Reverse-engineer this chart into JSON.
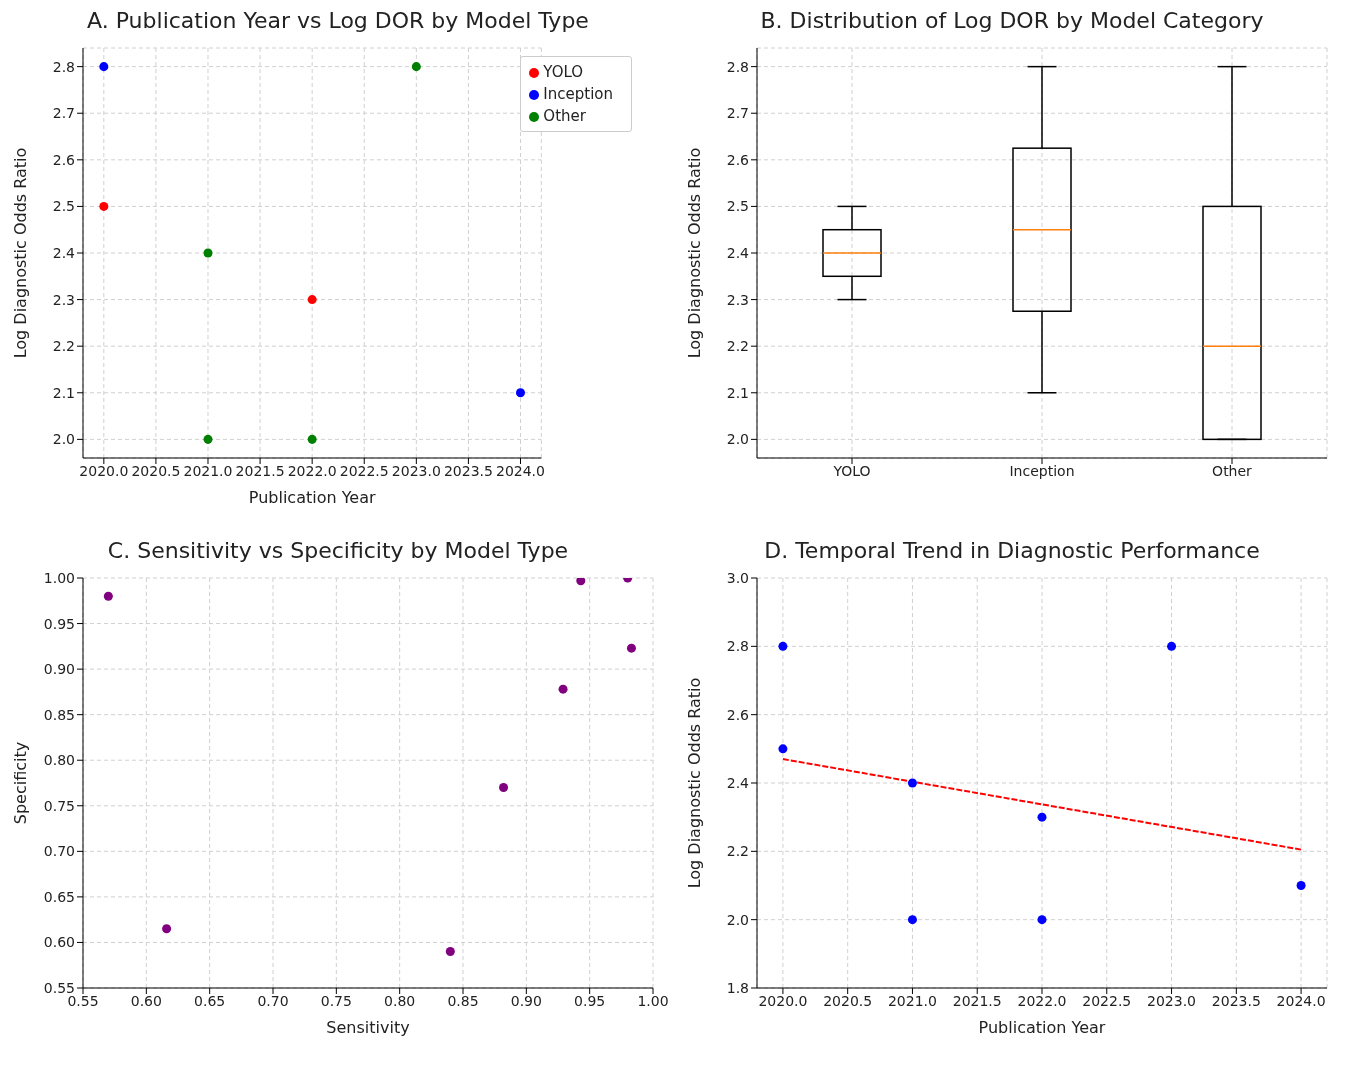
{
  "chart_data": [
    {
      "type": "scatter",
      "title": "A. Publication Year vs Log DOR by Model Type",
      "xlabel": "Publication Year",
      "ylabel": "Log Diagnostic Odds Ratio",
      "xlim": [
        2019.8,
        2024.2
      ],
      "xticks": [
        {
          "value": 2020,
          "label": "2020.0"
        },
        {
          "value": 2020.5,
          "label": "2020.5"
        },
        {
          "value": 2021,
          "label": "2021.0"
        },
        {
          "value": 2021.5,
          "label": "2021.5"
        },
        {
          "value": 2022,
          "label": "2022.0"
        },
        {
          "value": 2022.5,
          "label": "2022.5"
        },
        {
          "value": 2023,
          "label": "2023.0"
        },
        {
          "value": 2023.5,
          "label": "2023.5"
        },
        {
          "value": 2024,
          "label": "2024.0"
        }
      ],
      "ylim": [
        1.96,
        2.84
      ],
      "yticks": [
        {
          "value": 2,
          "label": "2.0"
        },
        2.1,
        2.2,
        2.3,
        2.4,
        2.5,
        2.6,
        2.7,
        2.8
      ],
      "grid": true,
      "legend": "top right",
      "marker": "circle",
      "series": [
        {
          "name": "YOLO",
          "color": "#ff0000",
          "x": [
            2020,
            2022
          ],
          "values": [
            2.5,
            2.3
          ]
        },
        {
          "name": "Inception",
          "color": "#0000ff",
          "x": [
            2020,
            2024
          ],
          "values": [
            2.8,
            2.1
          ]
        },
        {
          "name": "Other",
          "color": "#008000",
          "x": [
            2021,
            2021,
            2022,
            2023
          ],
          "values": [
            2.4,
            2.0,
            2.0,
            2.8
          ]
        }
      ]
    },
    {
      "type": "box",
      "title": "B. Distribution of Log DOR by Model Category",
      "ylabel": "Log Diagnostic Odds Ratio",
      "categories": [
        "YOLO",
        "Inception",
        "Other"
      ],
      "ylim": [
        1.96,
        2.84
      ],
      "yticks": [
        {
          "value": 2,
          "label": "2.0"
        },
        2.1,
        2.2,
        2.3,
        2.4,
        2.5,
        2.6,
        2.7,
        2.8
      ],
      "grid": true,
      "series": [
        {
          "color": "#000000",
          "boxes": [
            {
              "low": 2.3,
              "q1": 2.35,
              "median": 2.4,
              "q3": 2.45,
              "high": 2.5
            },
            {
              "low": 2.1,
              "q1": 2.275,
              "median": 2.45,
              "q3": 2.625,
              "high": 2.8
            },
            {
              "low": 2.0,
              "q1": 2.0,
              "median": 2.2,
              "q3": 2.5,
              "high": 2.8
            }
          ]
        }
      ]
    },
    {
      "type": "scatter",
      "title": "C. Sensitivity vs Specificity by Model Type",
      "xlabel": "Sensitivity",
      "ylabel": "Specificity",
      "xlim": [
        0.55,
        1.0
      ],
      "xticks": [
        0.55,
        {
          "value": 0.6,
          "label": "0.60"
        },
        0.65,
        {
          "value": 0.7,
          "label": "0.70"
        },
        0.75,
        {
          "value": 0.8,
          "label": "0.80"
        },
        0.85,
        {
          "value": 0.9,
          "label": "0.90"
        },
        0.95,
        {
          "value": 1,
          "label": "1.00"
        }
      ],
      "ylim": [
        0.55,
        1.0
      ],
      "yticks": [
        0.55,
        {
          "value": 0.6,
          "label": "0.60"
        },
        0.65,
        {
          "value": 0.7,
          "label": "0.70"
        },
        0.75,
        {
          "value": 0.8,
          "label": "0.80"
        },
        0.85,
        {
          "value": 0.9,
          "label": "0.90"
        },
        0.95,
        {
          "value": 1,
          "label": "1.00"
        }
      ],
      "grid": true,
      "marker": "circle",
      "series": [
        {
          "color": "#800080",
          "x": [
            0.57,
            0.616,
            0.84,
            0.882,
            0.929,
            0.943,
            0.98,
            0.983
          ],
          "values": [
            0.98,
            0.615,
            0.59,
            0.77,
            0.878,
            0.997,
            1.0,
            0.923
          ]
        }
      ]
    },
    {
      "type": "scatter",
      "title": "D. Temporal Trend in Diagnostic Performance",
      "xlabel": "Publication Year",
      "ylabel": "Log Diagnostic Odds Ratio",
      "xlim": [
        2019.8,
        2024.2
      ],
      "xticks": [
        {
          "value": 2020,
          "label": "2020.0"
        },
        {
          "value": 2020.5,
          "label": "2020.5"
        },
        {
          "value": 2021,
          "label": "2021.0"
        },
        {
          "value": 2021.5,
          "label": "2021.5"
        },
        {
          "value": 2022,
          "label": "2022.0"
        },
        {
          "value": 2022.5,
          "label": "2022.5"
        },
        {
          "value": 2023,
          "label": "2023.0"
        },
        {
          "value": 2023.5,
          "label": "2023.5"
        },
        {
          "value": 2024,
          "label": "2024.0"
        }
      ],
      "ylim": [
        1.8,
        3.0
      ],
      "yticks": [
        1.8,
        {
          "value": 2,
          "label": "2.0"
        },
        2.2,
        2.4,
        2.6,
        2.8,
        {
          "value": 3,
          "label": "3.0"
        }
      ],
      "grid": true,
      "marker": "circle",
      "series": [
        {
          "color": "#0000ff",
          "x": [
            2020,
            2020,
            2021,
            2021,
            2022,
            2022,
            2023,
            2024
          ],
          "values": [
            2.8,
            2.5,
            2.4,
            2.0,
            2.3,
            2.0,
            2.8,
            2.1
          ]
        },
        {
          "type": "line",
          "color": "#ff0000",
          "line_style": "dashed",
          "marker": "none",
          "x": [
            2020,
            2024
          ],
          "values": [
            2.47,
            2.205
          ]
        }
      ]
    }
  ]
}
